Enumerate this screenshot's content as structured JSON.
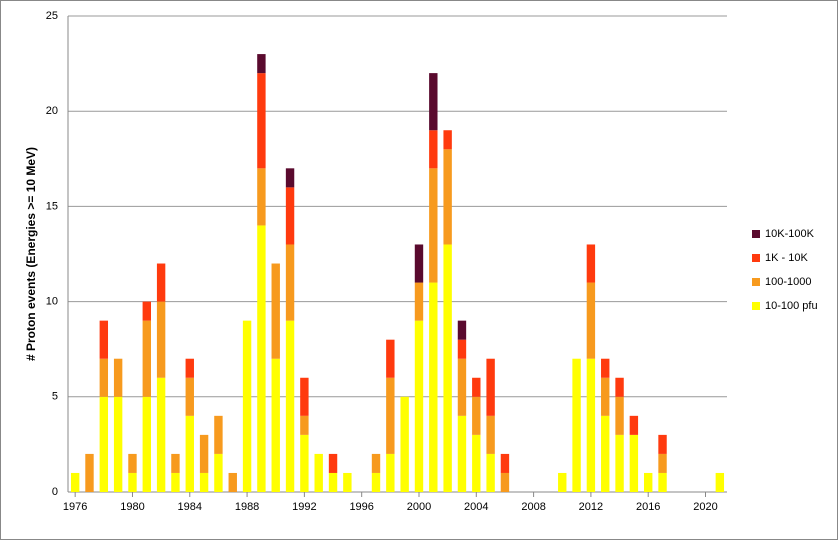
{
  "chart_data": {
    "type": "stacked_bar",
    "y_label": "# Proton events (Energies >= 10 MeV)",
    "categories": [
      "1976",
      null,
      null,
      null,
      "1980",
      null,
      null,
      null,
      "1984",
      null,
      null,
      null,
      "1988",
      null,
      null,
      null,
      "1992",
      null,
      null,
      null,
      "1996",
      null,
      null,
      null,
      "2000",
      null,
      null,
      null,
      "2004",
      null,
      null,
      null,
      "2008",
      null,
      null,
      null,
      "2012",
      null,
      null,
      null,
      "2016",
      null,
      null,
      null,
      "2020",
      null
    ],
    "series": [
      {
        "name": "10-100 pfu",
        "color": "#ffff00",
        "values": [
          1,
          0,
          5,
          5,
          1,
          5,
          6,
          1,
          4,
          1,
          2,
          0,
          9,
          14,
          7,
          9,
          3,
          2,
          1,
          1,
          0,
          1,
          2,
          5,
          9,
          11,
          13,
          4,
          3,
          2,
          0,
          0,
          0,
          0,
          1,
          7,
          7,
          4,
          3,
          3,
          1,
          1,
          0,
          0,
          0,
          1
        ]
      },
      {
        "name": "100-1000",
        "color": "#f79a1e",
        "values": [
          0,
          2,
          2,
          2,
          1,
          4,
          4,
          1,
          2,
          2,
          2,
          1,
          0,
          3,
          5,
          4,
          1,
          0,
          0,
          0,
          0,
          1,
          4,
          0,
          2,
          6,
          5,
          3,
          2,
          2,
          1,
          0,
          0,
          0,
          0,
          0,
          4,
          2,
          2,
          0,
          0,
          1,
          0,
          0,
          0,
          0
        ]
      },
      {
        "name": "1K - 10K",
        "color": "#ff3a0e",
        "values": [
          0,
          0,
          2,
          0,
          0,
          1,
          2,
          0,
          1,
          0,
          0,
          0,
          0,
          5,
          0,
          3,
          2,
          0,
          1,
          0,
          0,
          0,
          2,
          0,
          0,
          2,
          1,
          1,
          1,
          3,
          1,
          0,
          0,
          0,
          0,
          0,
          2,
          1,
          1,
          1,
          0,
          1,
          0,
          0,
          0,
          0
        ]
      },
      {
        "name": "10K-100K",
        "color": "#5a0a2e",
        "values": [
          0,
          0,
          0,
          0,
          0,
          0,
          0,
          0,
          0,
          0,
          0,
          0,
          0,
          1,
          0,
          1,
          0,
          0,
          0,
          0,
          0,
          0,
          0,
          0,
          2,
          3,
          0,
          1,
          0,
          0,
          0,
          0,
          0,
          0,
          0,
          0,
          0,
          0,
          0,
          0,
          0,
          0,
          0,
          0,
          0,
          0
        ]
      }
    ],
    "ylim": [
      0,
      25
    ],
    "yticks": [
      0,
      5,
      10,
      15,
      20,
      25
    ],
    "grid": true,
    "legend": "right"
  }
}
